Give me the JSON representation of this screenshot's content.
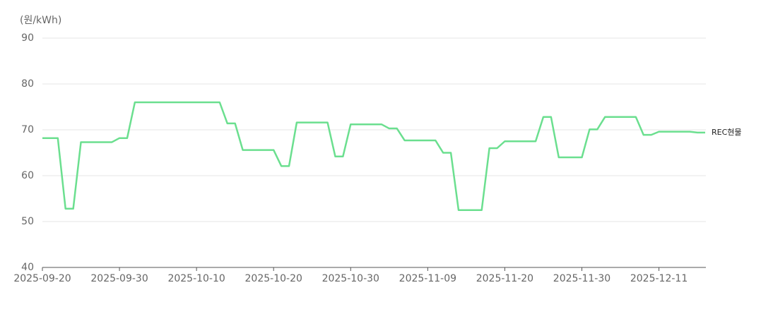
{
  "chart_data": {
    "type": "line",
    "y_label": "(원/kWh)",
    "categories": [
      "2025-09-20",
      null,
      null,
      null,
      null,
      null,
      null,
      null,
      null,
      null,
      "2025-09-30",
      null,
      null,
      null,
      null,
      null,
      null,
      null,
      null,
      null,
      "2025-10-10",
      null,
      null,
      null,
      null,
      null,
      null,
      null,
      null,
      null,
      "2025-10-20",
      null,
      null,
      null,
      null,
      null,
      null,
      null,
      null,
      null,
      "2025-10-30",
      null,
      null,
      null,
      null,
      null,
      null,
      null,
      null,
      null,
      "2025-11-09",
      null,
      null,
      null,
      null,
      null,
      null,
      null,
      null,
      null,
      "2025-11-20",
      null,
      null,
      null,
      null,
      null,
      null,
      null,
      null,
      null,
      "2025-11-30",
      null,
      null,
      null,
      null,
      null,
      null,
      null,
      null,
      null,
      "2025-12-11",
      null,
      null,
      null,
      null,
      null,
      null
    ],
    "series": [
      {
        "name": "REC현물",
        "color": "#6bdf8f",
        "values": [
          68.2,
          68.2,
          68.2,
          52.8,
          52.8,
          67.3,
          67.3,
          67.3,
          67.3,
          67.3,
          68.2,
          68.2,
          76,
          76,
          76,
          76,
          76,
          76,
          76,
          76,
          76,
          76,
          76,
          76,
          71.4,
          71.4,
          65.6,
          65.6,
          65.6,
          65.6,
          65.6,
          62.1,
          62.1,
          71.6,
          71.6,
          71.6,
          71.6,
          71.6,
          64.2,
          64.2,
          71.2,
          71.2,
          71.2,
          71.2,
          71.2,
          70.3,
          70.3,
          67.7,
          67.7,
          67.7,
          67.7,
          67.7,
          65,
          65,
          52.5,
          52.5,
          52.5,
          52.5,
          66,
          66,
          67.5,
          67.5,
          67.5,
          67.5,
          67.5,
          72.8,
          72.8,
          64,
          64,
          64,
          64,
          70.1,
          70.1,
          72.8,
          72.8,
          72.8,
          72.8,
          72.8,
          68.9,
          68.9,
          69.6,
          69.6,
          69.6,
          69.6,
          69.6,
          69.4,
          69.4
        ]
      }
    ],
    "ylim": [
      40,
      90
    ],
    "yticks": [
      40,
      50,
      60,
      70,
      80,
      90
    ],
    "grid": true
  }
}
